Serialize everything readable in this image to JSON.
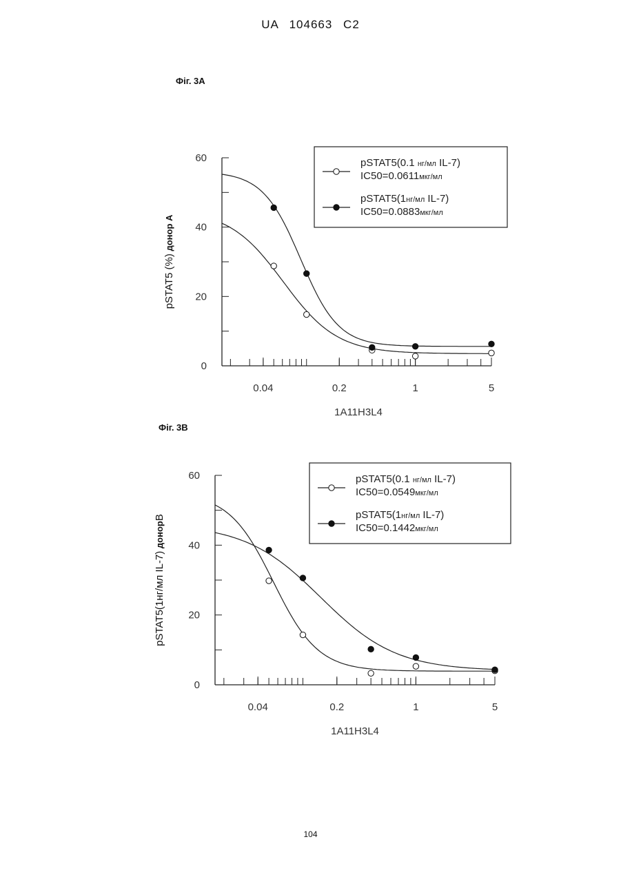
{
  "header": "UA 104663 C2",
  "page_number": "104",
  "chart_data": [
    {
      "type": "line",
      "figure_label": "Фіг. 3А",
      "xlabel": "1A11H3L4",
      "ylabel": [
        "pSTAT5 (%)",
        " донор А"
      ],
      "x_scale": "log",
      "x_ticks": [
        0.04,
        0.2,
        1,
        5
      ],
      "x_tick_labels": [
        "0.04",
        "0.2",
        "1",
        "5"
      ],
      "xlim": [
        0.0167,
        5
      ],
      "y_ticks": [
        0,
        20,
        40,
        60
      ],
      "ylim": [
        0,
        60
      ],
      "legend_position": "top-right",
      "series": [
        {
          "legend": [
            "pSTAT5(0.1 ",
            "нг/мл",
            "  IL-7)"
          ],
          "legend_ic50": [
            "IC50=0.0611",
            "мкг/мл"
          ],
          "marker": "open-circle",
          "x": [
            0.05,
            0.1,
            0.4,
            1,
            5
          ],
          "y": [
            28.8,
            14.8,
            4.5,
            2.8,
            3.7
          ],
          "fit": {
            "top": 45,
            "bottom": 3.5,
            "ic50": 0.0611,
            "hill": 1.75
          }
        },
        {
          "legend": [
            "pSTAT5(1",
            "нг/мл",
            "  IL-7)"
          ],
          "legend_ic50": [
            "IC50=0.0883",
            "мкг/мл"
          ],
          "marker": "filled-circle",
          "x": [
            0.05,
            0.1,
            0.4,
            1,
            5
          ],
          "y": [
            45.6,
            26.6,
            5.3,
            5.6,
            6.3
          ],
          "fit": {
            "top": 56,
            "bottom": 5.6,
            "ic50": 0.0883,
            "hill": 2.5
          }
        }
      ]
    },
    {
      "type": "line",
      "figure_label": "Фіг. 3В",
      "xlabel": "1A11H3L4",
      "ylabel": [
        "pSTAT5(1",
        "нг/мл",
        "  IL-7)",
        " донор",
        "В"
      ],
      "x_scale": "log",
      "x_ticks": [
        0.04,
        0.2,
        1,
        5
      ],
      "x_tick_labels": [
        "0.04",
        "0.2",
        "1",
        "5"
      ],
      "xlim": [
        0.0167,
        5
      ],
      "y_ticks": [
        0,
        20,
        40,
        60
      ],
      "ylim": [
        0,
        60
      ],
      "legend_position": "top-right",
      "series": [
        {
          "legend": [
            "pSTAT5(0.1 ",
            "нг/мл",
            "  IL-7)"
          ],
          "legend_ic50": [
            "IC50=0.0549",
            "мкг/мл"
          ],
          "marker": "open-circle",
          "x": [
            0.05,
            0.1,
            0.4,
            1,
            5
          ],
          "y": [
            29.8,
            14.3,
            3.3,
            5.3,
            4.0
          ],
          "fit": {
            "top": 55,
            "bottom": 3.9,
            "ic50": 0.0549,
            "hill": 2.2
          }
        },
        {
          "legend": [
            "pSTAT5(1",
            "нг/мл",
            "  IL-7)"
          ],
          "legend_ic50": [
            "IC50=0.1442",
            "мкг/мл"
          ],
          "marker": "filled-circle",
          "x": [
            0.05,
            0.1,
            0.4,
            1,
            5
          ],
          "y": [
            38.6,
            30.6,
            10.2,
            7.8,
            4.3
          ],
          "fit": {
            "top": 46,
            "bottom": 4.0,
            "ic50": 0.1442,
            "hill": 1.3
          }
        }
      ]
    }
  ]
}
